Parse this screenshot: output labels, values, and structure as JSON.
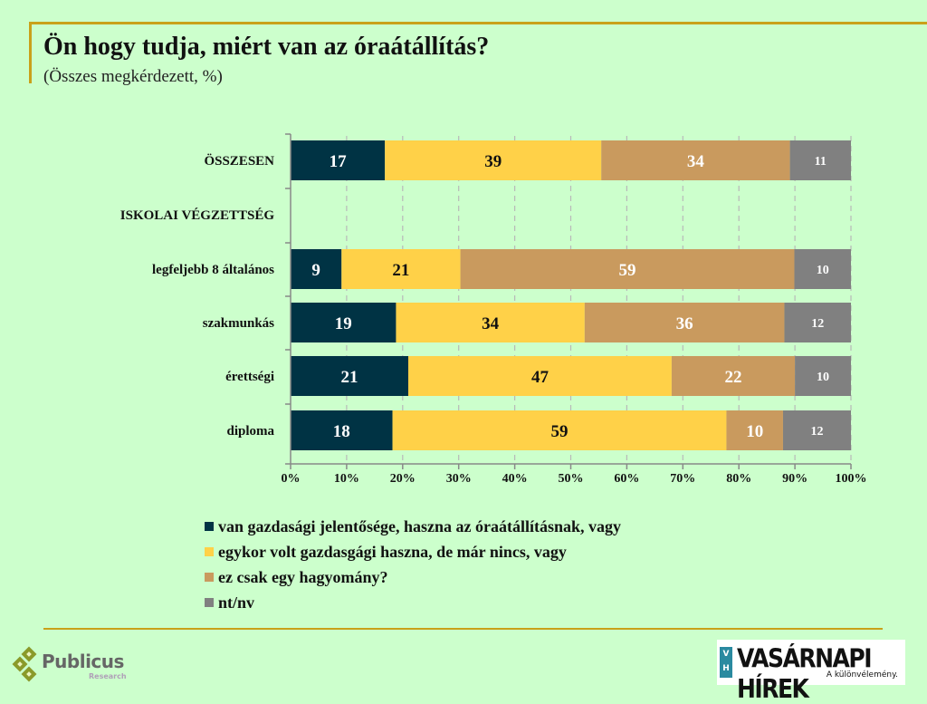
{
  "title": "Ön hogy tudja, miért van az óraátállítás?",
  "subtitle": "(Összes megkérdezett, %)",
  "chart_data": {
    "type": "bar",
    "orientation": "horizontal",
    "stacked": "percent",
    "title": "Ön hogy tudja, miért van az óraátállítás?",
    "subtitle": "(Összes megkérdezett, %)",
    "xlabel": "",
    "ylabel": "",
    "xlim": [
      0,
      100
    ],
    "x_ticks": [
      "0%",
      "10%",
      "20%",
      "30%",
      "40%",
      "50%",
      "60%",
      "70%",
      "80%",
      "90%",
      "100%"
    ],
    "grid": "vertical dashed",
    "legend_position": "bottom",
    "categories": [
      "ÖSSZESEN",
      "ISKOLAI VÉGZETTSÉG",
      "legfeljebb 8 általános",
      "szakmunkás",
      "érettségi",
      "diploma"
    ],
    "series": [
      {
        "name": "van gazdasági jelentősége, haszna az óraátállításnak, vagy",
        "color": "#003344",
        "label_color": "#ffffff",
        "values": [
          17,
          null,
          9,
          19,
          21,
          18
        ]
      },
      {
        "name": "egykor volt gazdasgági haszna, de már nincs, vagy",
        "color": "#ffd148",
        "label_color": "#111111",
        "values": [
          39,
          null,
          21,
          34,
          47,
          59
        ]
      },
      {
        "name": "ez csak egy hagyomány?",
        "color": "#c99a5e",
        "label_color": "#ffffff",
        "values": [
          34,
          null,
          59,
          36,
          22,
          10
        ]
      },
      {
        "name": "nt/nv",
        "color": "#808080",
        "label_color": "#ffffff",
        "values": [
          11,
          null,
          10,
          12,
          10,
          12
        ]
      }
    ]
  },
  "logos": {
    "left": {
      "name": "Publicus",
      "sub": "Research"
    },
    "right": {
      "name": "VASÁRNAPI HÍREK",
      "tagline": "A különvélemény.",
      "badge_top": "V",
      "badge_bottom": "H"
    }
  }
}
